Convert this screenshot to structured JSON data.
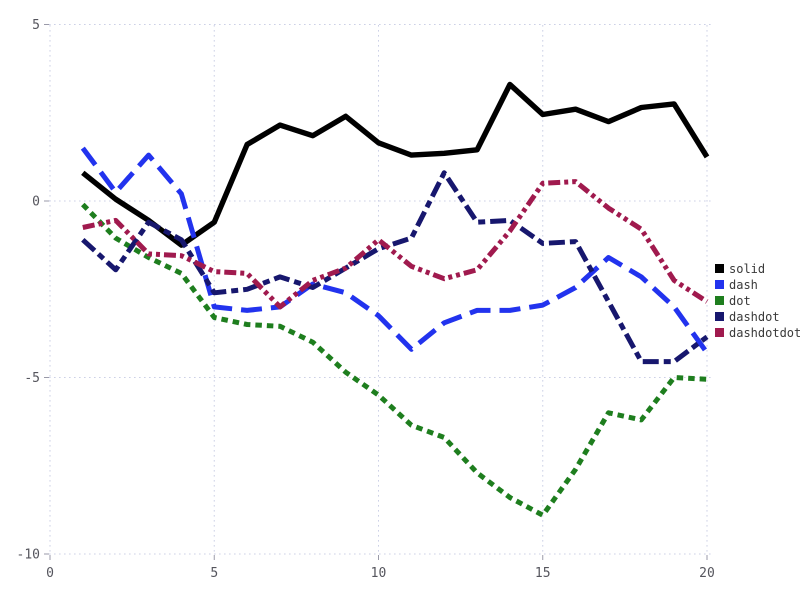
{
  "chart_data": {
    "type": "line",
    "title": "",
    "xlabel": "",
    "ylabel": "",
    "grid": true,
    "legend_position": "right",
    "xlim": [
      0,
      20.6
    ],
    "ylim": [
      -10.4,
      5.35
    ],
    "xticks": [
      0,
      5,
      10,
      15,
      20
    ],
    "yticks": [
      5,
      0,
      -5,
      -10
    ],
    "x": [
      1,
      2,
      3,
      4,
      5,
      6,
      7,
      8,
      9,
      10,
      11,
      12,
      13,
      14,
      15,
      16,
      17,
      18,
      19,
      20
    ],
    "series": [
      {
        "name": "solid",
        "style": "solid",
        "color": "#000000",
        "values": [
          0.8,
          0.05,
          -0.55,
          -1.25,
          -0.6,
          1.6,
          2.15,
          1.85,
          2.4,
          1.65,
          1.3,
          1.35,
          1.45,
          3.3,
          2.45,
          2.6,
          2.25,
          2.65,
          2.75,
          1.25
        ]
      },
      {
        "name": "dash",
        "style": "dash",
        "color": "#2233ee",
        "values": [
          1.5,
          0.25,
          1.3,
          0.2,
          -3.0,
          -3.1,
          -3.0,
          -2.35,
          -2.6,
          -3.25,
          -4.2,
          -3.45,
          -3.1,
          -3.1,
          -2.95,
          -2.45,
          -1.6,
          -2.15,
          -3.0,
          -4.3
        ]
      },
      {
        "name": "dot",
        "style": "dot",
        "color": "#1e7e1e",
        "values": [
          -0.1,
          -1.05,
          -1.6,
          -2.05,
          -3.3,
          -3.5,
          -3.55,
          -4.0,
          -4.85,
          -5.5,
          -6.35,
          -6.7,
          -7.7,
          -8.4,
          -8.9,
          -7.6,
          -6.0,
          -6.2,
          -5.0,
          -5.05
        ]
      },
      {
        "name": "dashdot",
        "style": "dashdot",
        "color": "#17176e",
        "values": [
          -1.1,
          -1.95,
          -0.6,
          -1.1,
          -2.6,
          -2.5,
          -2.15,
          -2.45,
          -1.9,
          -1.35,
          -1.05,
          0.8,
          -0.6,
          -0.55,
          -1.2,
          -1.15,
          -2.85,
          -4.55,
          -4.55,
          -3.85
        ]
      },
      {
        "name": "dashdotdot",
        "style": "dashdotdot",
        "color": "#a01a4e",
        "values": [
          -0.75,
          -0.55,
          -1.5,
          -1.55,
          -2.0,
          -2.05,
          -3.0,
          -2.25,
          -1.9,
          -1.1,
          -1.85,
          -2.2,
          -1.95,
          -0.85,
          0.5,
          0.55,
          -0.2,
          -0.8,
          -2.25,
          -2.85
        ]
      }
    ],
    "legend_labels": [
      "solid",
      "dash",
      "dot",
      "dashdot",
      "dashdotdot"
    ],
    "tick_color": "#55555d",
    "legend_text_color": "#3a3a3a",
    "grid_color": "#ccd0e6"
  }
}
